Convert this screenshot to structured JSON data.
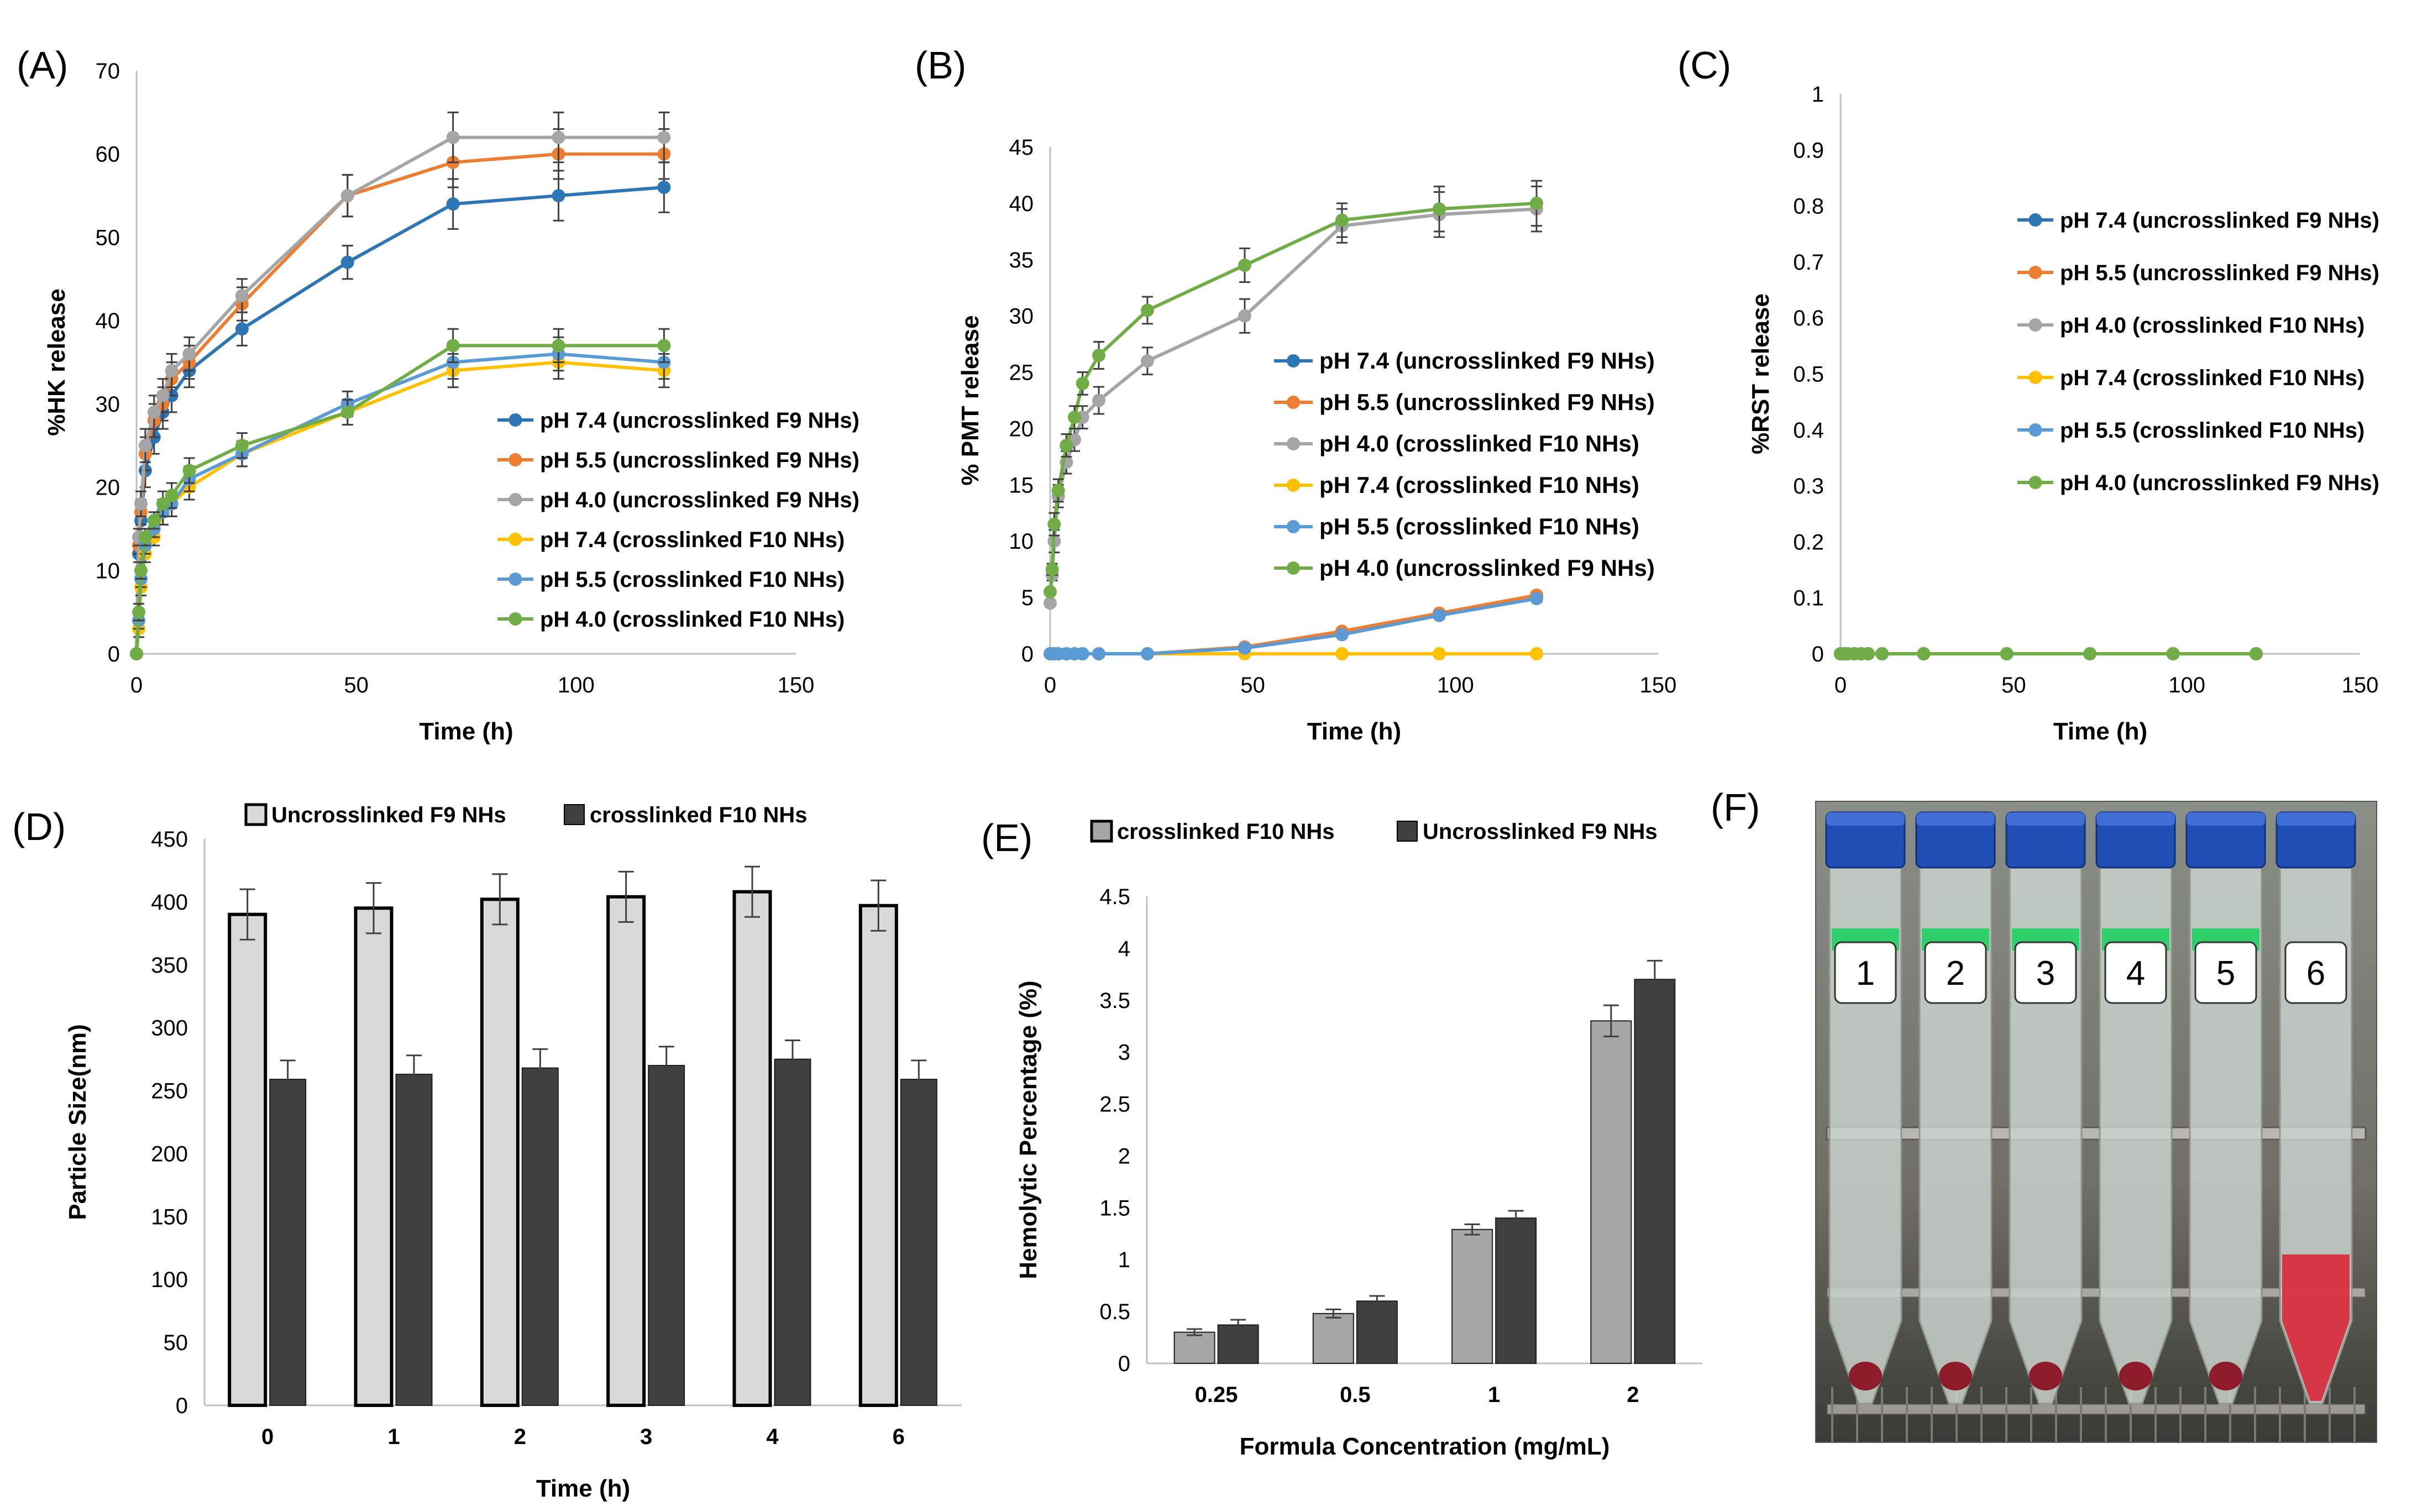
{
  "chart_data": [
    {
      "id": "A",
      "panel_label": "(A)",
      "type": "line",
      "xlabel": "Time (h)",
      "ylabel": "%HK release",
      "xlim": [
        0,
        150
      ],
      "ylim": [
        0,
        70
      ],
      "xticks": [
        0,
        50,
        100,
        150
      ],
      "yticks": [
        0,
        10,
        20,
        30,
        40,
        50,
        60,
        70
      ],
      "x": [
        0,
        0.5,
        1,
        2,
        4,
        6,
        8,
        12,
        24,
        48,
        72,
        96,
        120
      ],
      "legend_position": "lower-right",
      "series": [
        {
          "name": "pH 7.4  (uncrosslinked F9 NHs)",
          "color": "#2e75b6",
          "values": [
            0,
            12,
            16,
            22,
            26,
            29,
            31,
            34,
            39,
            47,
            54,
            55,
            56
          ],
          "errors": [
            0,
            1,
            1.5,
            2,
            2,
            2,
            2,
            2,
            2,
            2,
            3,
            3,
            3
          ]
        },
        {
          "name": "pH 5.5  (uncrosslinked F9 NHs)",
          "color": "#ed7d31",
          "values": [
            0,
            13,
            17,
            24,
            28,
            30,
            33,
            35,
            42,
            55,
            59,
            60,
            60
          ],
          "errors": [
            0,
            1,
            1.5,
            2,
            2,
            2,
            2,
            2,
            2,
            2.5,
            3,
            3,
            3
          ]
        },
        {
          "name": "pH 4.0  (uncrosslinked F9 NHs)",
          "color": "#a5a5a5",
          "values": [
            0,
            14,
            18,
            25,
            29,
            31,
            34,
            36,
            43,
            55,
            62,
            62,
            62
          ],
          "errors": [
            0,
            1,
            1.5,
            2,
            2,
            2,
            2,
            2,
            2,
            2.5,
            3,
            3,
            3
          ]
        },
        {
          "name": "pH 7.4 (crosslinked F10 NHs)",
          "color": "#ffc000",
          "values": [
            0,
            3,
            8,
            12,
            14,
            17,
            18,
            20,
            24,
            29,
            34,
            35,
            34
          ],
          "errors": [
            0,
            1,
            1,
            1,
            1,
            1.5,
            1.5,
            1.5,
            1.5,
            1.5,
            2,
            2,
            2
          ]
        },
        {
          "name": "pH 5.5 (crosslinked F10 NHs)",
          "color": "#5b9bd5",
          "values": [
            0,
            4,
            9,
            13,
            15,
            17,
            18,
            21,
            24,
            30,
            35,
            36,
            35
          ],
          "errors": [
            0,
            1,
            1,
            1,
            1,
            1.5,
            1.5,
            1.5,
            1.5,
            1.5,
            2,
            2,
            2
          ]
        },
        {
          "name": "pH 4.0 (crosslinked F10 NHs)",
          "color": "#70ad47",
          "values": [
            0,
            5,
            10,
            14,
            16,
            18,
            19,
            22,
            25,
            29,
            37,
            37,
            37
          ],
          "errors": [
            0,
            1,
            1,
            1,
            1,
            1.5,
            1.5,
            1.5,
            1.5,
            1.5,
            2,
            2,
            2
          ]
        }
      ]
    },
    {
      "id": "B",
      "panel_label": "(B)",
      "type": "line",
      "xlabel": "Time (h)",
      "ylabel": "% PMT release",
      "xlim": [
        0,
        150
      ],
      "ylim": [
        0,
        45
      ],
      "xticks": [
        0,
        50,
        100,
        150
      ],
      "yticks": [
        0,
        5,
        10,
        15,
        20,
        25,
        30,
        35,
        40,
        45
      ],
      "x": [
        0,
        0.5,
        1,
        2,
        4,
        6,
        8,
        12,
        24,
        48,
        72,
        96,
        120
      ],
      "legend_position": "lower-right",
      "series": [
        {
          "name": "pH 7.4 (uncrosslinked F9 NHs)",
          "color": "#2e75b6",
          "values": [
            0,
            0,
            0,
            0,
            0,
            0,
            0,
            0,
            0,
            0.5,
            1.8,
            3.5,
            5
          ],
          "errors": [
            0,
            0,
            0,
            0,
            0,
            0,
            0,
            0,
            0,
            0.2,
            0.2,
            0.3,
            0.3
          ]
        },
        {
          "name": "pH 5.5 (uncrosslinked F9 NHs)",
          "color": "#ed7d31",
          "values": [
            0,
            0,
            0,
            0,
            0,
            0,
            0,
            0,
            0,
            0.6,
            2,
            3.6,
            5.2
          ],
          "errors": [
            0,
            0,
            0,
            0,
            0,
            0,
            0,
            0,
            0,
            0.2,
            0.2,
            0.3,
            0.3
          ]
        },
        {
          "name": "pH 4.0 (crosslinked F10 NHs)",
          "color": "#a5a5a5",
          "values": [
            4.5,
            7,
            10,
            14,
            17,
            19,
            21,
            22.5,
            26,
            30,
            38,
            39,
            39.5
          ],
          "errors": [
            0,
            0.5,
            1,
            1,
            1,
            1,
            1,
            1.2,
            1.2,
            1.5,
            1.5,
            2,
            2
          ]
        },
        {
          "name": "pH 7.4 (crosslinked F10 NHs)",
          "color": "#ffc000",
          "values": [
            0,
            0,
            0,
            0,
            0,
            0,
            0,
            0,
            0,
            0,
            0,
            0,
            0
          ],
          "errors": [
            0,
            0,
            0,
            0,
            0,
            0,
            0,
            0,
            0,
            0,
            0,
            0,
            0
          ]
        },
        {
          "name": "pH 5.5 (crosslinked F10 NHs)",
          "color": "#5b9bd5",
          "values": [
            0,
            0,
            0,
            0,
            0,
            0,
            0,
            0,
            0,
            0.5,
            1.7,
            3.4,
            4.9
          ],
          "errors": [
            0,
            0,
            0,
            0,
            0,
            0,
            0,
            0,
            0,
            0.2,
            0.2,
            0.3,
            0.3
          ]
        },
        {
          "name": "pH 4.0 (uncrosslinked F9 NHs)",
          "color": "#70ad47",
          "values": [
            5.5,
            7.5,
            11.5,
            14.5,
            18.5,
            21,
            24,
            26.5,
            30.5,
            34.5,
            38.5,
            39.5,
            40
          ],
          "errors": [
            0,
            0.5,
            1,
            1,
            1,
            1,
            1,
            1.2,
            1.2,
            1.5,
            1.5,
            2,
            2
          ]
        }
      ]
    },
    {
      "id": "C",
      "panel_label": "(C)",
      "type": "line",
      "xlabel": "Time (h)",
      "ylabel": "%RST release",
      "xlim": [
        0,
        150
      ],
      "ylim": [
        0,
        1
      ],
      "xticks": [
        0,
        50,
        100,
        150
      ],
      "yticks": [
        0,
        0.1,
        0.2,
        0.3,
        0.4,
        0.5,
        0.6,
        0.7,
        0.8,
        0.9,
        1
      ],
      "x": [
        0,
        0.5,
        1,
        2,
        4,
        6,
        8,
        12,
        24,
        48,
        72,
        96,
        120
      ],
      "legend_position": "right",
      "series": [
        {
          "name": "pH 7.4 (uncrosslinked F9 NHs)",
          "color": "#2e75b6",
          "values": [
            0,
            0,
            0,
            0,
            0,
            0,
            0,
            0,
            0,
            0,
            0,
            0,
            0
          ]
        },
        {
          "name": "pH 5.5 (uncrosslinked F9 NHs)",
          "color": "#ed7d31",
          "values": [
            0,
            0,
            0,
            0,
            0,
            0,
            0,
            0,
            0,
            0,
            0,
            0,
            0
          ]
        },
        {
          "name": "pH 4.0 (crosslinked F10 NHs)",
          "color": "#a5a5a5",
          "values": [
            0,
            0,
            0,
            0,
            0,
            0,
            0,
            0,
            0,
            0,
            0,
            0,
            0
          ]
        },
        {
          "name": "pH 7.4 (crosslinked F10 NHs)",
          "color": "#ffc000",
          "values": [
            0,
            0,
            0,
            0,
            0,
            0,
            0,
            0,
            0,
            0,
            0,
            0,
            0
          ]
        },
        {
          "name": "pH 5.5 (crosslinked F10 NHs)",
          "color": "#5b9bd5",
          "values": [
            0,
            0,
            0,
            0,
            0,
            0,
            0,
            0,
            0,
            0,
            0,
            0,
            0
          ]
        },
        {
          "name": "pH 4.0 (uncrosslinked F9 NHs)",
          "color": "#70ad47",
          "values": [
            0,
            0,
            0,
            0,
            0,
            0,
            0,
            0,
            0,
            0,
            0,
            0,
            0
          ]
        }
      ]
    },
    {
      "id": "D",
      "panel_label": "(D)",
      "type": "bar",
      "xlabel": "Time (h)",
      "ylabel": "Particle Size(nm)",
      "ylim": [
        0,
        450
      ],
      "yticks": [
        0,
        50,
        100,
        150,
        200,
        250,
        300,
        350,
        400,
        450
      ],
      "categories": [
        "0",
        "1",
        "2",
        "3",
        "4",
        "6"
      ],
      "legend_position": "top",
      "series": [
        {
          "name": "Uncrosslinked F9 NHs",
          "color": "#d9d9d9",
          "values": [
            390,
            395,
            402,
            404,
            408,
            397
          ],
          "errors": [
            20,
            20,
            20,
            20,
            20,
            20
          ]
        },
        {
          "name": "crosslinked  F10 NHs",
          "color": "#3f3f3f",
          "values": [
            259,
            263,
            268,
            270,
            275,
            259
          ],
          "errors": [
            15,
            15,
            15,
            15,
            15,
            15
          ]
        }
      ]
    },
    {
      "id": "E",
      "panel_label": "(E)",
      "type": "bar",
      "xlabel": "Formula Concentration (mg/mL)",
      "ylabel": "Hemolytic Percentage (%)",
      "ylim": [
        0,
        4.5
      ],
      "yticks": [
        0,
        0.5,
        1,
        1.5,
        2,
        2.5,
        3,
        3.5,
        4,
        4.5
      ],
      "categories": [
        "0.25",
        "0.5",
        "1",
        "2"
      ],
      "legend_position": "top",
      "series": [
        {
          "name": "crosslinked F10 NHs",
          "color": "#a6a6a6",
          "values": [
            0.3,
            0.48,
            1.29,
            3.3
          ],
          "errors": [
            0.03,
            0.04,
            0.05,
            0.15
          ]
        },
        {
          "name": "Uncrosslinked F9 NHs",
          "color": "#3f3f3f",
          "values": [
            0.37,
            0.6,
            1.4,
            3.7
          ],
          "errors": [
            0.05,
            0.05,
            0.07,
            0.18
          ]
        }
      ]
    }
  ],
  "photo": {
    "panel_label": "(F)",
    "tube_labels": [
      "1",
      "2",
      "3",
      "4",
      "5",
      "6"
    ]
  }
}
